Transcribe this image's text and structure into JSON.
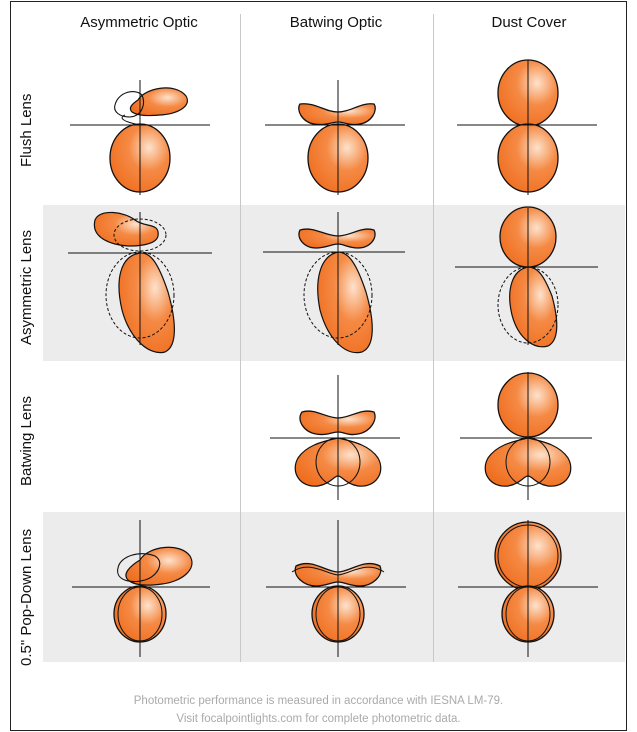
{
  "columns": [
    "Asymmetric Optic",
    "Batwing Optic",
    "Dust Cover"
  ],
  "rows": [
    "Flush Lens",
    "Asymmetric Lens",
    "Batwing Lens",
    "0.5\" Pop-Down Lens"
  ],
  "footer": {
    "line1": "Photometric performance is measured in accordance with IESNA LM-79.",
    "line2": "Visit focalpointlights.com for complete photometric data."
  },
  "colors": {
    "fill": "#f07a30",
    "highlight": "#fde2cc",
    "band": "#ececec"
  }
}
